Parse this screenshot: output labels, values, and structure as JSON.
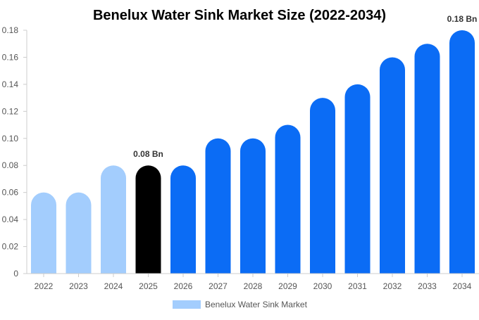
{
  "chart_data": {
    "type": "bar",
    "title": "Benelux Water Sink Market Size (2022-2034)",
    "xlabel": "",
    "ylabel": "",
    "categories": [
      "2022",
      "2023",
      "2024",
      "2025",
      "2026",
      "2027",
      "2028",
      "2029",
      "2030",
      "2031",
      "2032",
      "2033",
      "2034"
    ],
    "series": [
      {
        "name": "Benelux Water Sink Market",
        "values": [
          0.06,
          0.06,
          0.08,
          0.08,
          0.08,
          0.1,
          0.1,
          0.11,
          0.13,
          0.14,
          0.16,
          0.17,
          0.18
        ]
      }
    ],
    "ylim": [
      0,
      0.18
    ],
    "y_ticks": [
      "0",
      "0.02",
      "0.04",
      "0.06",
      "0.08",
      "0.10",
      "0.12",
      "0.14",
      "0.16",
      "0.18"
    ],
    "y_tick_values": [
      0,
      0.02,
      0.04,
      0.06,
      0.08,
      0.1,
      0.12,
      0.14,
      0.16,
      0.18
    ],
    "data_labels": [
      {
        "category": "2025",
        "text": "0.08 Bn"
      },
      {
        "category": "2034",
        "text": "0.18 Bn"
      }
    ],
    "bar_colors": {
      "historical": "#a3cdfd",
      "current": "#000000",
      "forecast": "#0b6cf5"
    },
    "historical_categories": [
      "2022",
      "2023",
      "2024"
    ],
    "current_category": "2025",
    "grid": false,
    "legend_position": "bottom"
  }
}
